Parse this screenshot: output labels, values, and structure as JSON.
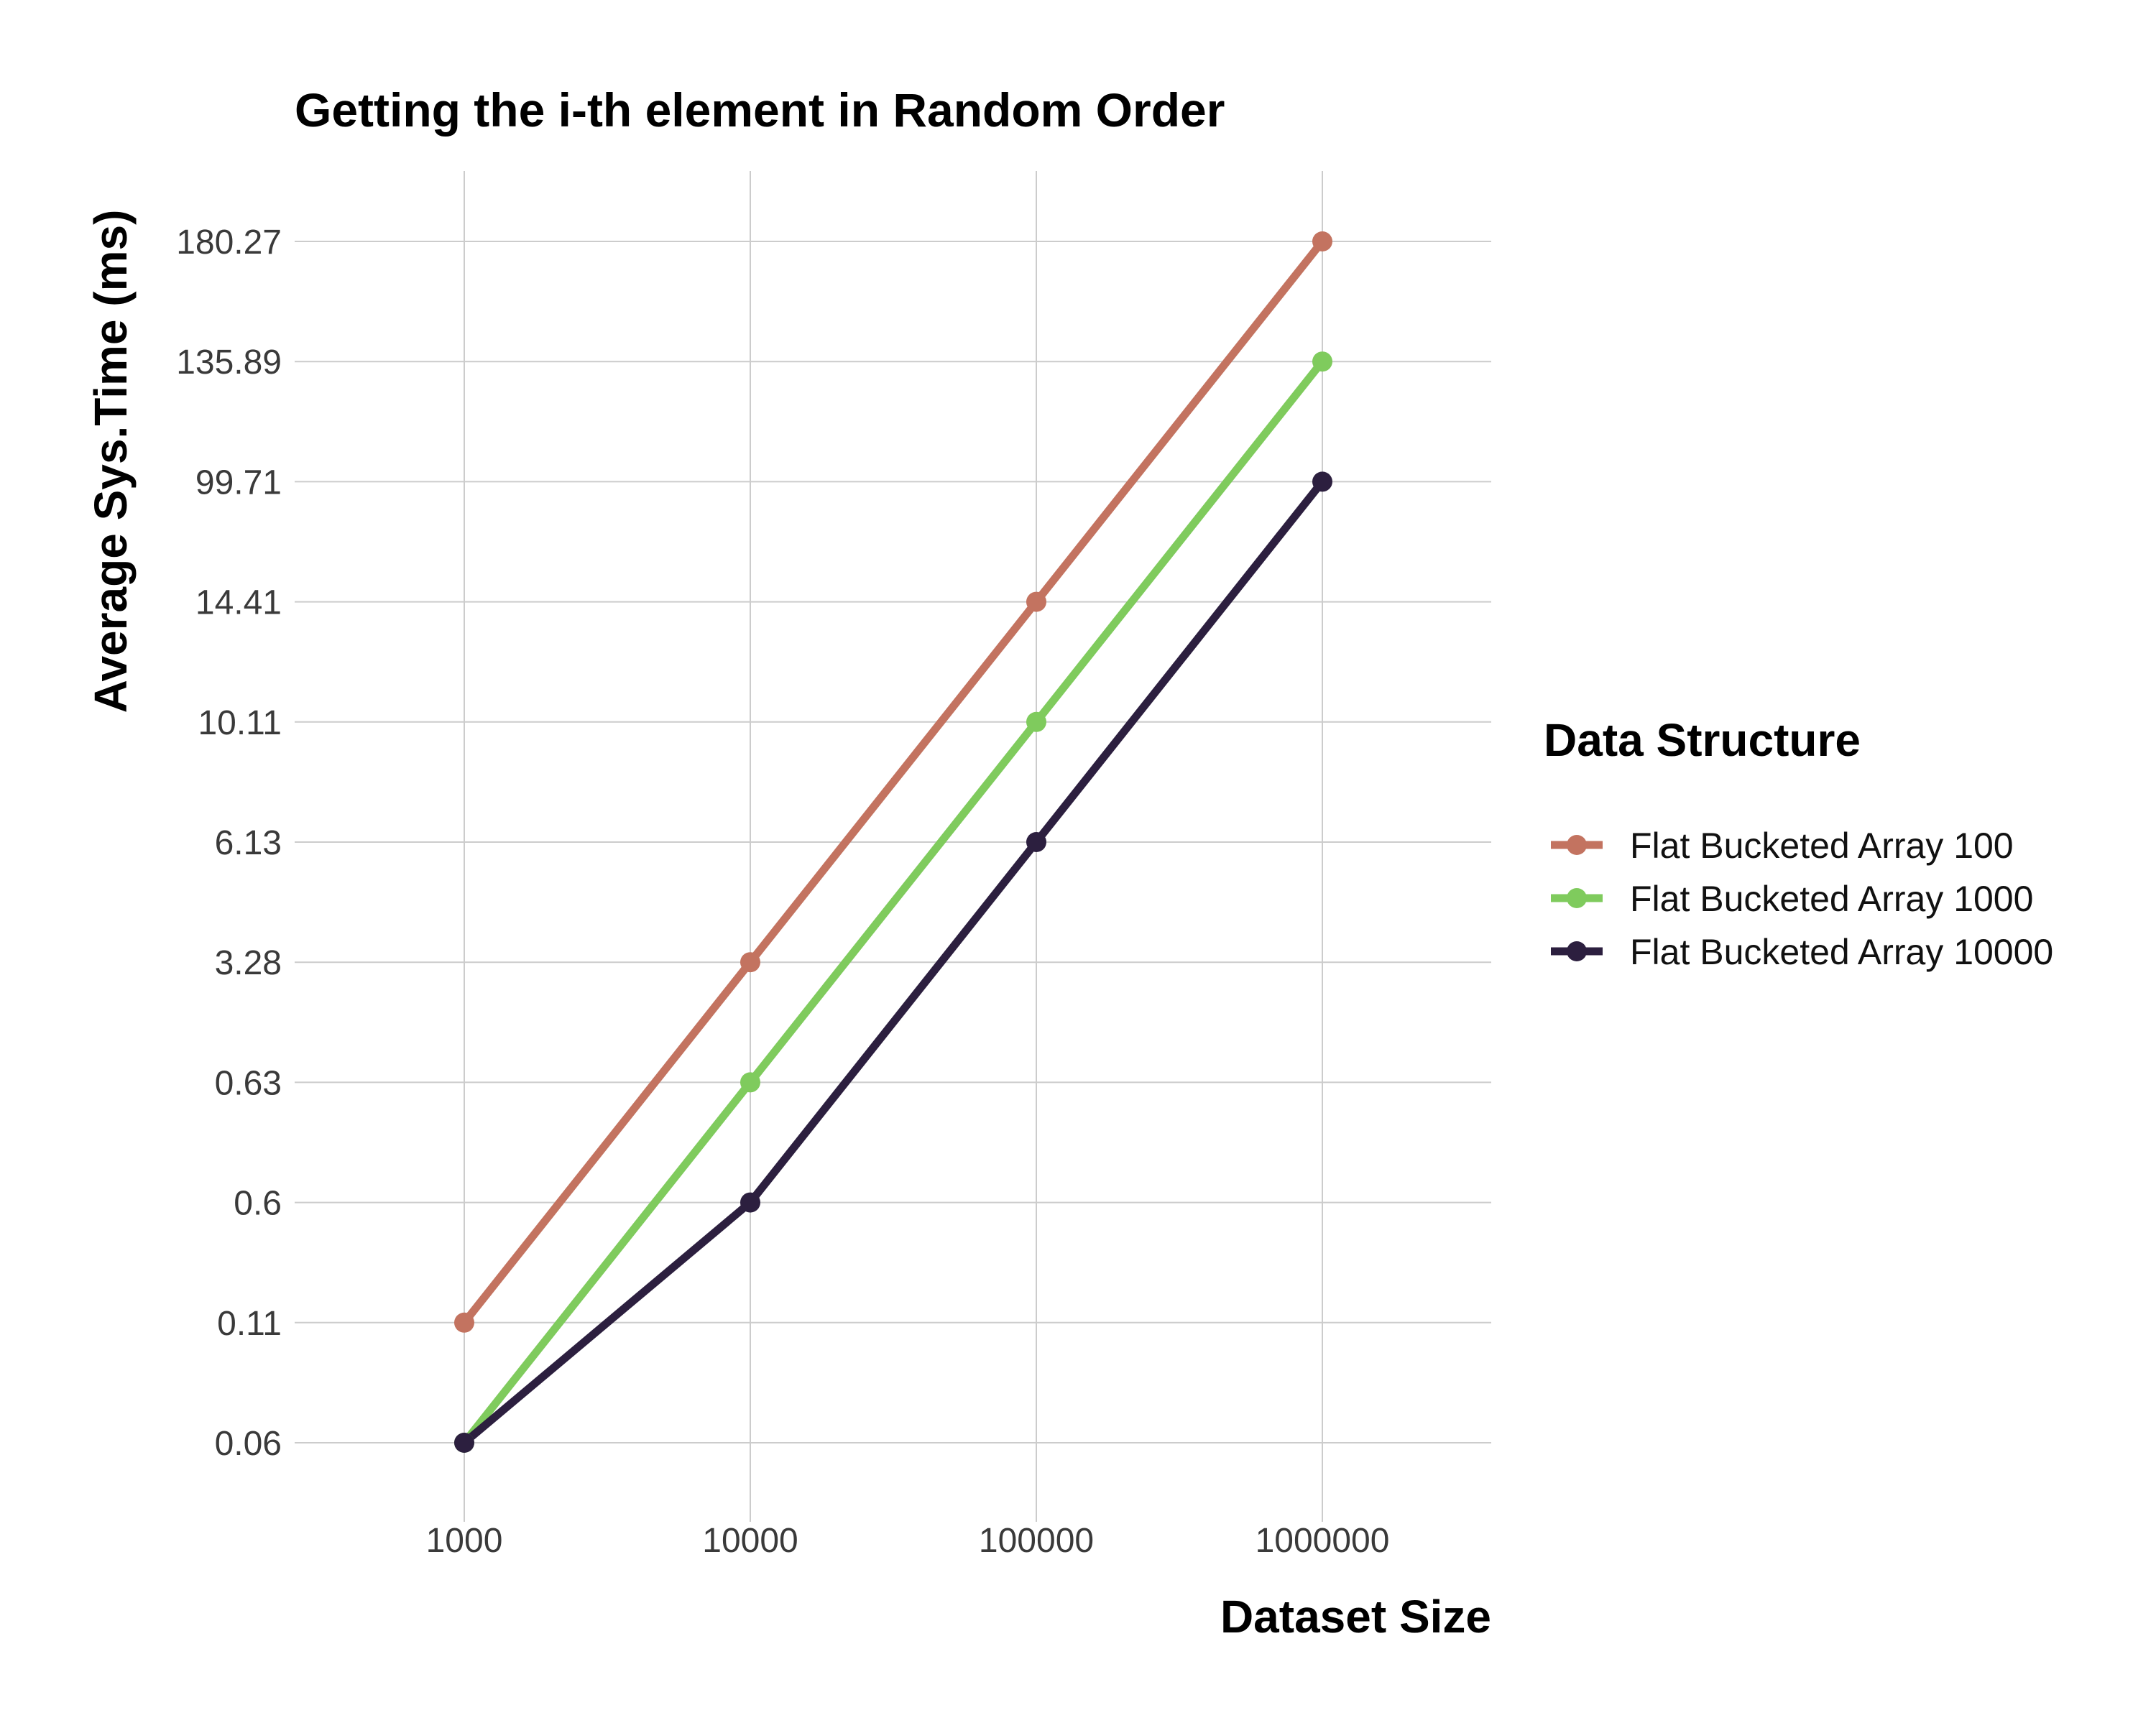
{
  "chart_data": {
    "type": "line",
    "title": "Getting the i-th element in Random Order",
    "xlabel": "Dataset Size",
    "ylabel": "Average Sys.Time (ms)",
    "x_scale": "log",
    "y_scale": "categorical",
    "categories": [
      "1000",
      "10000",
      "100000",
      "1000000"
    ],
    "y_ticks": [
      "0.06",
      "0.11",
      "0.6",
      "0.63",
      "3.28",
      "6.13",
      "10.11",
      "14.41",
      "99.71",
      "135.89",
      "180.27"
    ],
    "grid": true,
    "legend": {
      "title": "Data Structure",
      "position": "right"
    },
    "series": [
      {
        "name": "Flat Bucketed Array 100",
        "color": "#c37360",
        "values": [
          "0.11",
          "3.28",
          "14.41",
          "180.27"
        ]
      },
      {
        "name": "Flat Bucketed Array 1000",
        "color": "#7fcb5d",
        "values": [
          "0.06",
          "0.63",
          "10.11",
          "135.89"
        ]
      },
      {
        "name": "Flat Bucketed Array 10000",
        "color": "#2c1f3f",
        "values": [
          "0.06",
          "0.6",
          "6.13",
          "99.71"
        ]
      }
    ]
  }
}
